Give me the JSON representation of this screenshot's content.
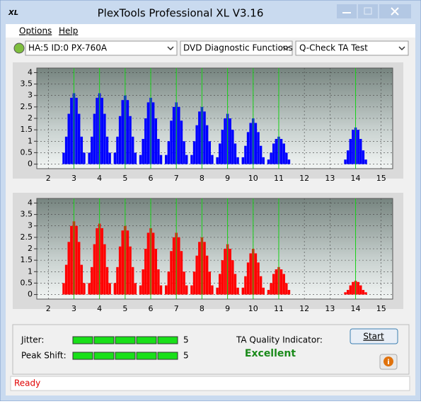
{
  "window": {
    "title": "PlexTools Professional XL V3.16"
  },
  "menu": [
    "Options",
    "Help"
  ],
  "toolbar": {
    "drive": "HA:5 ID:0  PX-760A",
    "function": "DVD Diagnostic Functions",
    "test": "Q-Check TA Test"
  },
  "charts": [
    {
      "type": "bar",
      "color": "#0000ff",
      "marker_color": "#19d219",
      "x": [
        2.6,
        2.7,
        2.8,
        2.9,
        3,
        3.1,
        3.2,
        3.3,
        3.4,
        3.6,
        3.7,
        3.8,
        3.9,
        4,
        4.1,
        4.2,
        4.3,
        4.4,
        4.6,
        4.7,
        4.8,
        4.9,
        5,
        5.1,
        5.2,
        5.3,
        5.4,
        5.6,
        5.7,
        5.8,
        5.9,
        6,
        6.1,
        6.2,
        6.3,
        6.4,
        6.6,
        6.7,
        6.8,
        6.9,
        7,
        7.1,
        7.2,
        7.3,
        7.4,
        7.6,
        7.7,
        7.8,
        7.9,
        8,
        8.1,
        8.2,
        8.3,
        8.4,
        8.6,
        8.7,
        8.8,
        8.9,
        9,
        9.1,
        9.2,
        9.3,
        9.4,
        9.6,
        9.7,
        9.8,
        9.9,
        10,
        10.1,
        10.2,
        10.3,
        10.4,
        10.6,
        10.7,
        10.8,
        10.9,
        11,
        11.1,
        11.2,
        11.3,
        11.4,
        13.6,
        13.7,
        13.8,
        13.9,
        14,
        14.1,
        14.2,
        14.3,
        14.4
      ],
      "values": [
        0.5,
        1.2,
        2.2,
        2.9,
        3.1,
        2.9,
        2.2,
        1.2,
        0.5,
        0.5,
        1.2,
        2.2,
        2.9,
        3.1,
        2.9,
        2.2,
        1.2,
        0.5,
        0.5,
        1.2,
        2.1,
        2.8,
        3.0,
        2.8,
        2.1,
        1.2,
        0.5,
        0.4,
        1.1,
        2.0,
        2.7,
        2.9,
        2.7,
        2.0,
        1.1,
        0.4,
        0.4,
        1.0,
        1.9,
        2.5,
        2.7,
        2.5,
        1.9,
        1.0,
        0.4,
        0.4,
        1.0,
        1.7,
        2.3,
        2.5,
        2.3,
        1.7,
        1.0,
        0.4,
        0.3,
        0.9,
        1.5,
        2.0,
        2.2,
        2.0,
        1.5,
        0.9,
        0.3,
        0.3,
        0.8,
        1.4,
        1.8,
        2.0,
        1.8,
        1.4,
        0.8,
        0.3,
        0.2,
        0.5,
        0.9,
        1.1,
        1.2,
        1.1,
        0.9,
        0.5,
        0.2,
        0.2,
        0.6,
        1.1,
        1.5,
        1.6,
        1.5,
        1.1,
        0.6,
        0.2
      ],
      "markers": [
        3,
        4,
        5,
        6,
        7,
        8,
        9,
        10,
        11,
        14
      ],
      "xlim": [
        1.55,
        15.45
      ],
      "ylim": [
        -0.2,
        4.2
      ],
      "xticks": [
        2,
        3,
        4,
        5,
        6,
        7,
        8,
        9,
        10,
        11,
        12,
        13,
        14,
        15
      ],
      "yticks": [
        0,
        0.5,
        1,
        1.5,
        2,
        2.5,
        3,
        3.5,
        4
      ],
      "grid": true
    },
    {
      "type": "bar",
      "color": "#ff0000",
      "marker_color": "#19d219",
      "x": [
        2.6,
        2.7,
        2.8,
        2.9,
        3,
        3.1,
        3.2,
        3.3,
        3.4,
        3.6,
        3.7,
        3.8,
        3.9,
        4,
        4.1,
        4.2,
        4.3,
        4.4,
        4.6,
        4.7,
        4.8,
        4.9,
        5,
        5.1,
        5.2,
        5.3,
        5.4,
        5.6,
        5.7,
        5.8,
        5.9,
        6,
        6.1,
        6.2,
        6.3,
        6.4,
        6.6,
        6.7,
        6.8,
        6.9,
        7,
        7.1,
        7.2,
        7.3,
        7.4,
        7.6,
        7.7,
        7.8,
        7.9,
        8,
        8.1,
        8.2,
        8.3,
        8.4,
        8.6,
        8.7,
        8.8,
        8.9,
        9,
        9.1,
        9.2,
        9.3,
        9.4,
        9.6,
        9.7,
        9.8,
        9.9,
        10,
        10.1,
        10.2,
        10.3,
        10.4,
        10.6,
        10.7,
        10.8,
        10.9,
        11,
        11.1,
        11.2,
        11.3,
        11.4,
        13.6,
        13.7,
        13.8,
        13.9,
        14,
        14.1,
        14.2,
        14.3,
        14.4
      ],
      "values": [
        0.5,
        1.3,
        2.3,
        3.0,
        3.2,
        3.0,
        2.3,
        1.3,
        0.5,
        0.5,
        1.2,
        2.2,
        2.9,
        3.1,
        2.9,
        2.2,
        1.2,
        0.5,
        0.5,
        1.2,
        2.1,
        2.8,
        3.0,
        2.8,
        2.1,
        1.2,
        0.5,
        0.4,
        1.1,
        2.0,
        2.7,
        2.9,
        2.7,
        2.0,
        1.1,
        0.4,
        0.4,
        1.0,
        1.9,
        2.5,
        2.7,
        2.5,
        1.9,
        1.0,
        0.4,
        0.4,
        1.0,
        1.7,
        2.3,
        2.5,
        2.3,
        1.7,
        1.0,
        0.4,
        0.3,
        0.9,
        1.5,
        2.0,
        2.2,
        2.0,
        1.5,
        0.9,
        0.3,
        0.3,
        0.8,
        1.4,
        1.8,
        2.0,
        1.8,
        1.4,
        0.8,
        0.3,
        0.2,
        0.5,
        0.9,
        1.1,
        1.2,
        1.1,
        0.9,
        0.5,
        0.2,
        0.1,
        0.2,
        0.4,
        0.55,
        0.6,
        0.55,
        0.4,
        0.2,
        0.1
      ],
      "markers": [
        3,
        4,
        5,
        6,
        7,
        8,
        9,
        10,
        11,
        14
      ],
      "xlim": [
        1.55,
        15.45
      ],
      "ylim": [
        -0.2,
        4.2
      ],
      "xticks": [
        2,
        3,
        4,
        5,
        6,
        7,
        8,
        9,
        10,
        11,
        12,
        13,
        14,
        15
      ],
      "yticks": [
        0,
        0.5,
        1,
        1.5,
        2,
        2.5,
        3,
        3.5,
        4
      ],
      "grid": true
    }
  ],
  "results": {
    "jitter": {
      "label": "Jitter:",
      "value": 5
    },
    "peak_shift": {
      "label": "Peak Shift:",
      "value": 5
    },
    "ta_quality": {
      "label": "TA Quality Indicator:",
      "value": "Excellent"
    },
    "start": "Start"
  },
  "status": "Ready"
}
